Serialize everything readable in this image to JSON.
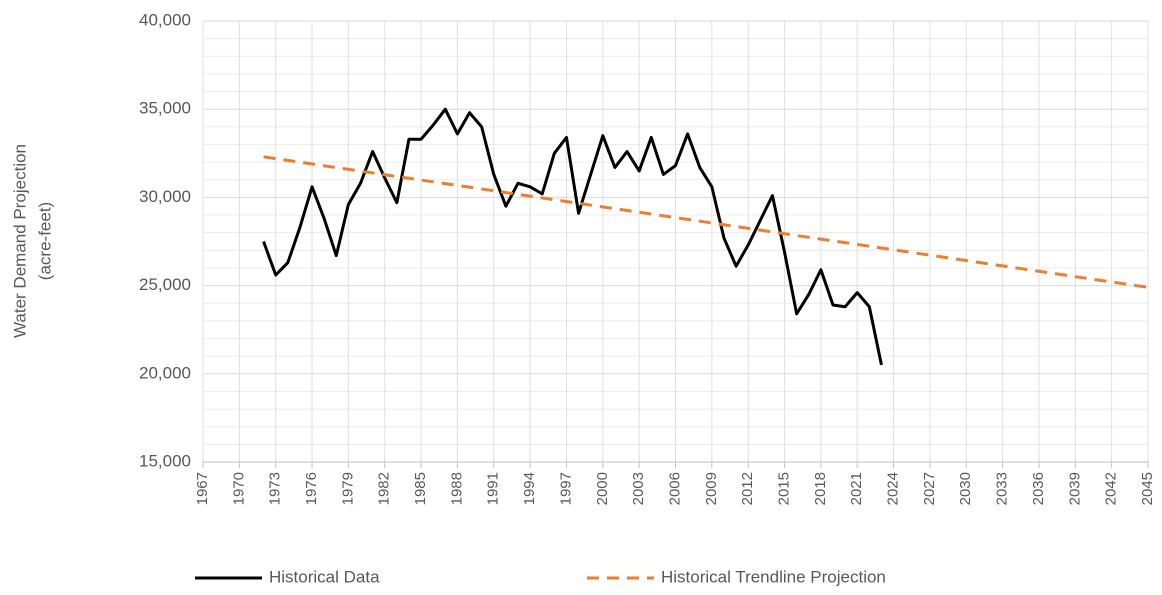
{
  "chart_data": {
    "type": "line",
    "ylabel": [
      "Water Demand Projection",
      "(acre-feet)"
    ],
    "xlim": [
      1967,
      2045
    ],
    "xticks": [
      1967,
      1970,
      1973,
      1976,
      1979,
      1982,
      1985,
      1988,
      1991,
      1994,
      1997,
      2000,
      2003,
      2006,
      2009,
      2012,
      2015,
      2018,
      2021,
      2024,
      2027,
      2030,
      2033,
      2036,
      2039,
      2042,
      2045
    ],
    "ylim": [
      15000,
      40000
    ],
    "yticks": [
      {
        "value": 15000,
        "label": "15,000"
      },
      {
        "value": 20000,
        "label": "20,000"
      },
      {
        "value": 25000,
        "label": "25,000"
      },
      {
        "value": 30000,
        "label": "30,000"
      },
      {
        "value": 35000,
        "label": "35,000"
      },
      {
        "value": 40000,
        "label": "40,000"
      }
    ],
    "yminor_ticks": [
      16000,
      17000,
      18000,
      19000,
      21000,
      22000,
      23000,
      24000,
      26000,
      27000,
      28000,
      29000,
      31000,
      32000,
      33000,
      34000,
      36000,
      37000,
      38000,
      39000
    ],
    "grid": true,
    "legend": "bottom",
    "series": [
      {
        "name": "Historical Data",
        "color": "#000000",
        "dashed": false,
        "x": [
          1972,
          1973,
          1974,
          1975,
          1976,
          1977,
          1978,
          1979,
          1980,
          1981,
          1982,
          1983,
          1984,
          1985,
          1986,
          1987,
          1988,
          1989,
          1990,
          1991,
          1992,
          1993,
          1994,
          1995,
          1996,
          1997,
          1998,
          1999,
          2000,
          2001,
          2002,
          2003,
          2004,
          2005,
          2006,
          2007,
          2008,
          2009,
          2010,
          2011,
          2012,
          2013,
          2014,
          2015,
          2016,
          2017,
          2018,
          2019,
          2020,
          2021,
          2022,
          2023
        ],
        "values": [
          27500,
          25600,
          26300,
          28300,
          30600,
          28800,
          26700,
          29600,
          30800,
          32600,
          31100,
          29700,
          33300,
          33300,
          34100,
          35000,
          33600,
          34800,
          34000,
          31300,
          29500,
          30800,
          30600,
          30200,
          32500,
          33400,
          29100,
          31300,
          33500,
          31700,
          32600,
          31500,
          33400,
          31300,
          31800,
          33600,
          31700,
          30600,
          27700,
          26100,
          27300,
          28700,
          30100,
          26900,
          23400,
          24500,
          25900,
          23900,
          23800,
          24600,
          23800,
          20500
        ]
      },
      {
        "name": "Historical Trendline Projection",
        "color": "#ed7d31",
        "dashed": true,
        "x": [
          1972,
          2045
        ],
        "values": [
          32300,
          24900
        ]
      }
    ]
  }
}
